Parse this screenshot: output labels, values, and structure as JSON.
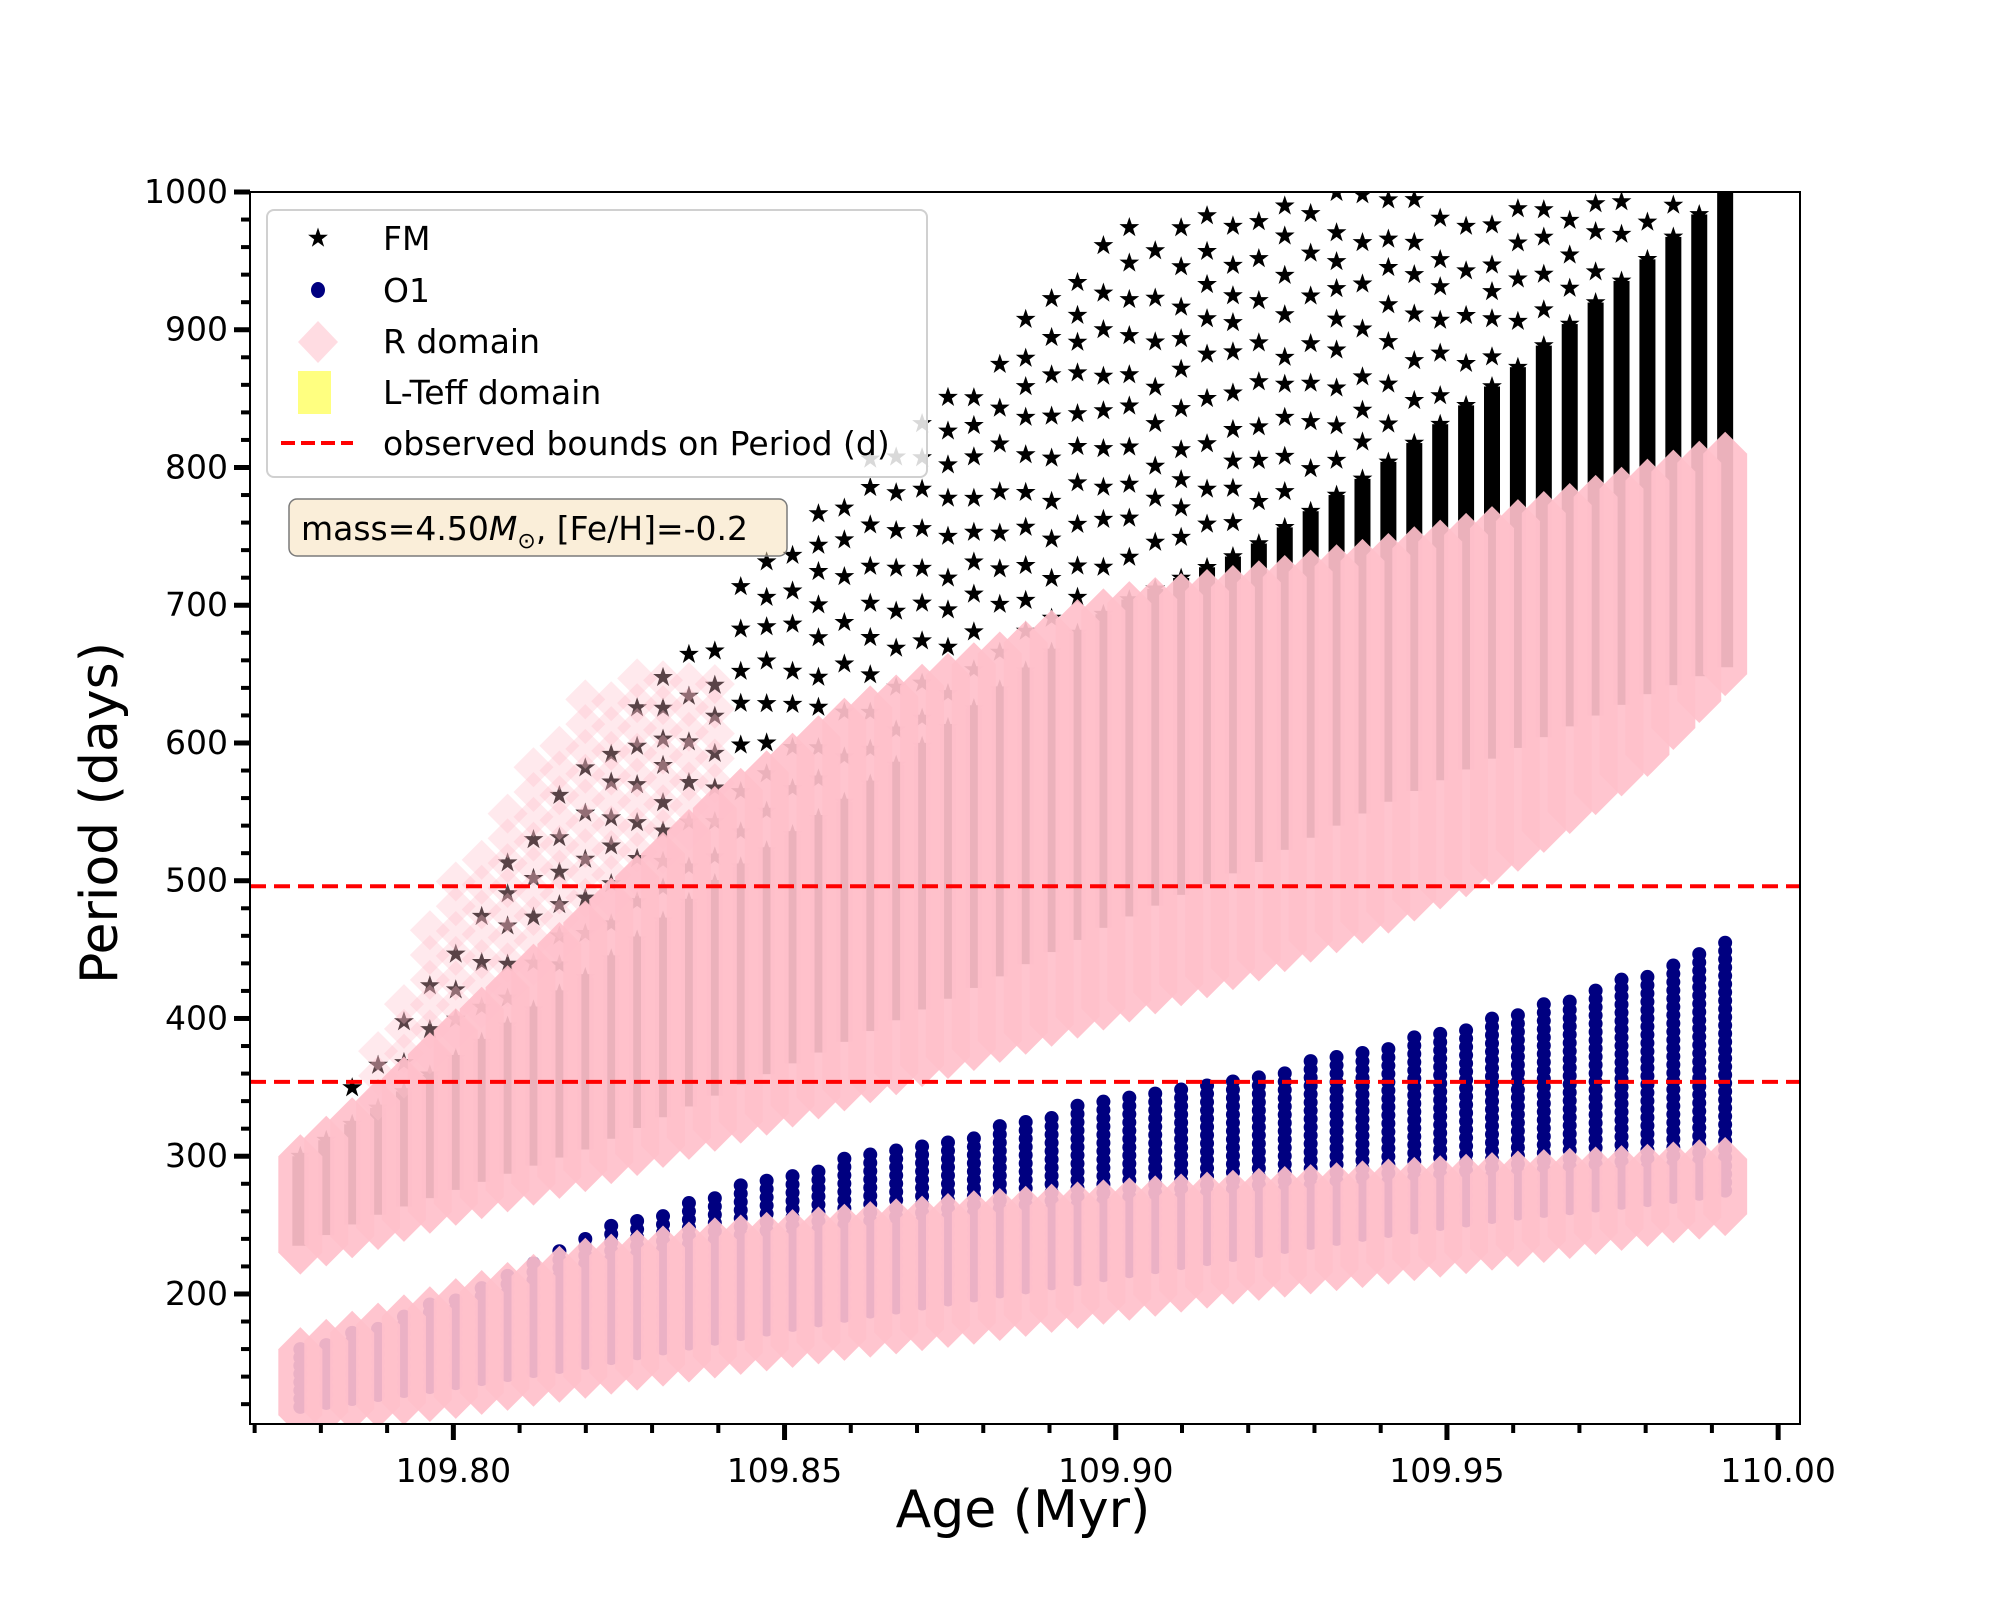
{
  "chart_data": {
    "type": "scatter",
    "title": "",
    "xlabel": "Age (Myr)",
    "ylabel": "Period (days)",
    "xlim": [
      109.7693,
      110.0033
    ],
    "ylim": [
      105.6,
      1000
    ],
    "grid": false,
    "x_ticks": [
      109.8,
      109.85,
      109.9,
      109.95,
      110.0
    ],
    "x_tick_labels": [
      "109.80",
      "109.85",
      "109.90",
      "109.95",
      "110.00"
    ],
    "x_minor_step": 0.01,
    "y_ticks": [
      200,
      300,
      400,
      500,
      600,
      700,
      800,
      900,
      1000
    ],
    "y_tick_labels": [
      "200",
      "300",
      "400",
      "500",
      "600",
      "700",
      "800",
      "900",
      "1000"
    ],
    "y_minor_step": 20,
    "legend": {
      "placement": "top-left",
      "entries": [
        {
          "label": "FM",
          "marker": "star",
          "color": "#000000"
        },
        {
          "label": "O1",
          "marker": "circle",
          "color": "#000080"
        },
        {
          "label": "R domain",
          "marker": "diamond",
          "color": "#ffc0cb"
        },
        {
          "label": "L-Teff domain",
          "marker": "square",
          "color": "#ffff80"
        },
        {
          "label": "observed bounds on Period (d)",
          "marker": "dashed-line",
          "color": "#ff0000"
        }
      ]
    },
    "annotation": {
      "text_prefix": "mass=4.50",
      "text_symbol": "M",
      "text_sub": "⊙",
      "text_suffix": ", [Fe/H]=-0.2",
      "placement": "upper-left",
      "background": "#f5deb3"
    },
    "hlines": [
      {
        "name": "upper-bound",
        "y": 496,
        "color": "#ff0000",
        "style": "dashed"
      },
      {
        "name": "lower-bound",
        "y": 354,
        "color": "#ff0000",
        "style": "dashed"
      }
    ],
    "age_columns": {
      "start": 109.7769,
      "end": 109.992,
      "count": 56
    },
    "series": [
      {
        "name": "FM",
        "marker": "star",
        "color": "#000000",
        "envelope": {
          "age": [
            109.7769,
            109.787,
            109.8,
            109.82,
            109.84,
            109.86,
            109.88,
            109.9,
            109.92,
            109.94,
            109.96,
            109.98,
            109.992
          ],
          "period_min": [
            235,
            255,
            275,
            305,
            345,
            385,
            425,
            470,
            510,
            555,
            595,
            635,
            655
          ],
          "period_max": [
            300,
            370,
            460,
            590,
            700,
            800,
            880,
            980,
            1000,
            1000,
            1000,
            1000,
            1000
          ],
          "dense_top": [
            300,
            330,
            370,
            430,
            500,
            560,
            630,
            700,
            740,
            800,
            870,
            950,
            1000
          ]
        }
      },
      {
        "name": "O1",
        "marker": "circle",
        "color": "#000080",
        "envelope": {
          "age": [
            109.7769,
            109.8,
            109.82,
            109.84,
            109.86,
            109.88,
            109.9,
            109.92,
            109.94,
            109.96,
            109.98,
            109.992
          ],
          "period_min": [
            118,
            135,
            150,
            168,
            185,
            200,
            215,
            230,
            245,
            258,
            268,
            275
          ],
          "period_max": [
            160,
            200,
            245,
            275,
            300,
            320,
            345,
            360,
            380,
            405,
            435,
            455
          ]
        }
      },
      {
        "name": "R domain (FM)",
        "marker": "diamond",
        "color": "#ffc0cb",
        "envelope": {
          "age": [
            109.7769,
            109.79,
            109.8,
            109.82,
            109.84,
            109.86,
            109.88,
            109.9,
            109.92,
            109.94,
            109.96,
            109.98,
            109.992
          ],
          "period_min": [
            230,
            250,
            265,
            290,
            320,
            350,
            380,
            410,
            440,
            475,
            520,
            590,
            650
          ],
          "period_max": [
            300,
            345,
            390,
            470,
            555,
            620,
            660,
            700,
            715,
            735,
            760,
            790,
            810
          ]
        },
        "sparse_top": {
          "age": [
            109.787,
            109.8,
            109.82,
            109.83
          ],
          "period_max": [
            370,
            500,
            640,
            660
          ]
        }
      },
      {
        "name": "R domain (O1)",
        "marker": "diamond",
        "color": "#ffc0cb",
        "envelope": {
          "age": [
            109.7769,
            109.8,
            109.82,
            109.84,
            109.86,
            109.88,
            109.9,
            109.92,
            109.94,
            109.96,
            109.98,
            109.992
          ],
          "period_min": [
            112,
            125,
            140,
            155,
            168,
            180,
            195,
            210,
            222,
            235,
            250,
            258
          ],
          "period_max": [
            160,
            195,
            225,
            240,
            250,
            260,
            268,
            275,
            282,
            288,
            293,
            298
          ]
        }
      }
    ]
  }
}
